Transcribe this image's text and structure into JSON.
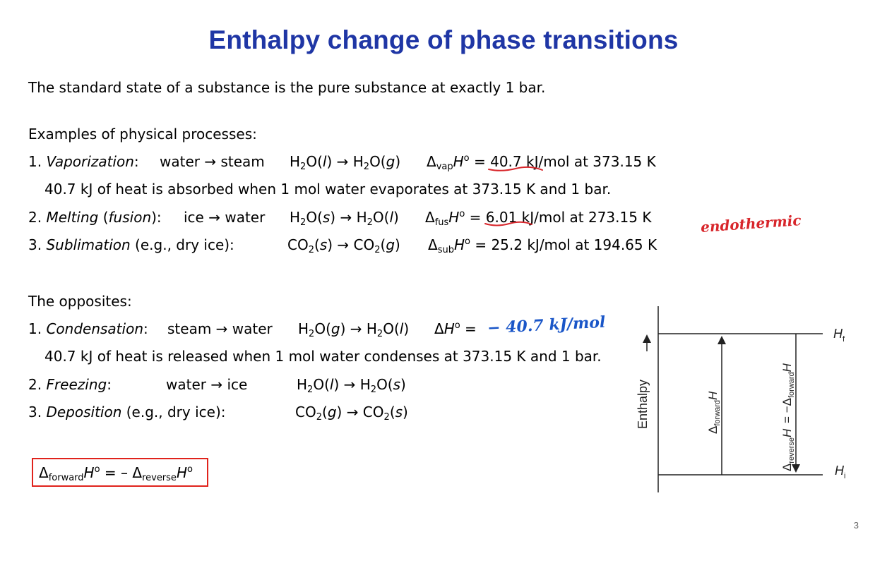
{
  "title": "Enthalpy change of phase transitions",
  "intro": "The standard state of a substance is the pure substance at exactly 1 bar.",
  "examples_header": "Examples of physical processes:",
  "vaporization": {
    "num": "1.",
    "name": "Vaporization",
    "colon": ":",
    "words_from": "water",
    "words_to": "steam",
    "eq_from": "H2O(l)",
    "eq_to": "H2O(g)",
    "delta_sub": "vap",
    "value": "40.7 kJ/mol at 373.15 K",
    "note": "40.7 kJ of heat is absorbed when 1 mol water evaporates at 373.15 K and 1 bar."
  },
  "melting": {
    "num": "2.",
    "name": "Melting",
    "paren_name": "fusion",
    "words_from": "ice",
    "words_to": "water",
    "delta_sub": "fus",
    "value": "6.01 kJ/mol at 273.15 K"
  },
  "sublimation": {
    "num": "3.",
    "name": "Sublimation",
    "qualifier": "(e.g., dry ice):",
    "delta_sub": "sub",
    "value": "25.2 kJ/mol at 194.65 K"
  },
  "opposites_header": "The opposites:",
  "condensation": {
    "num": "1.",
    "name": "Condensation",
    "words_from": "steam",
    "words_to": "water",
    "note": "40.7 kJ of heat is released when 1 mol water condenses at 373.15 K and 1 bar."
  },
  "freezing": {
    "num": "2.",
    "name": "Freezing",
    "words_from": "water",
    "words_to": "ice"
  },
  "deposition": {
    "num": "3.",
    "name": "Deposition",
    "qualifier": "(e.g., dry ice):"
  },
  "key_relation": {
    "forward_sub": "forward",
    "reverse_sub": "reverse"
  },
  "handwriting": {
    "endothermic": "endothermic",
    "condensation_value": "− 40.7 kJ/mol",
    "red_color": "#d8262b",
    "blue_color": "#1a56c8"
  },
  "diagram": {
    "axis_label": "Enthalpy",
    "top_label": "H",
    "top_sub": "f",
    "bottom_label": "H",
    "bottom_sub": "i",
    "forward_label_sub": "forward",
    "reverse_label_sub": "reverse"
  },
  "page_number": "3",
  "colors": {
    "title": "#1f36a5",
    "box_border": "#e0231c"
  }
}
